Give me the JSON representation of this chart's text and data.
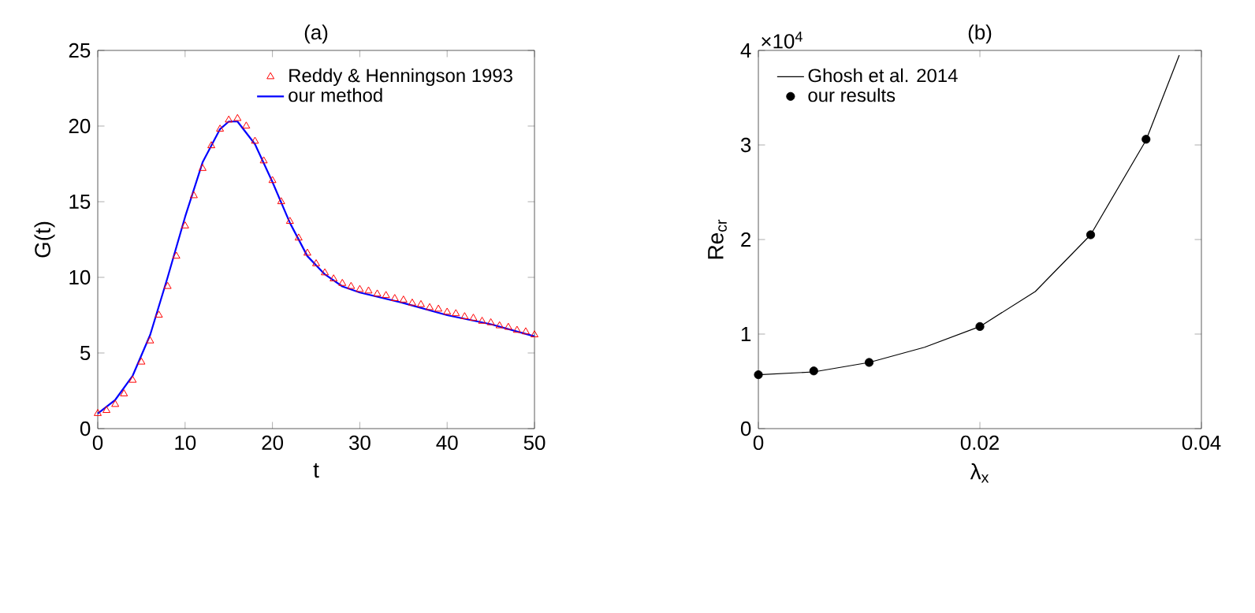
{
  "chart_data": [
    {
      "type": "line",
      "title": "(a)",
      "xlabel": "t",
      "ylabel": "G(t)",
      "xlim": [
        0,
        50
      ],
      "ylim": [
        0,
        25
      ],
      "xticks": [
        0,
        10,
        20,
        30,
        40,
        50
      ],
      "yticks": [
        0,
        5,
        10,
        15,
        20,
        25
      ],
      "legend": "top right",
      "series": [
        {
          "name": "Reddy & Henningson 1993",
          "type": "scatter",
          "marker": "triangle",
          "color": "#ff0000",
          "x": [
            0,
            1,
            2,
            3,
            4,
            5,
            6,
            7,
            8,
            9,
            10,
            11,
            12,
            13,
            14,
            15,
            16,
            17,
            18,
            19,
            20,
            21,
            22,
            23,
            24,
            25,
            26,
            27,
            28,
            29,
            30,
            31,
            32,
            33,
            34,
            35,
            36,
            37,
            38,
            39,
            40,
            41,
            42,
            43,
            44,
            45,
            46,
            47,
            48,
            49,
            50
          ],
          "values": [
            1.0,
            1.2,
            1.6,
            2.3,
            3.2,
            4.4,
            5.8,
            7.5,
            9.4,
            11.4,
            13.4,
            15.4,
            17.2,
            18.7,
            19.8,
            20.4,
            20.5,
            20.0,
            19.0,
            17.7,
            16.4,
            15.0,
            13.7,
            12.6,
            11.6,
            10.9,
            10.3,
            9.9,
            9.6,
            9.4,
            9.2,
            9.1,
            8.9,
            8.8,
            8.6,
            8.5,
            8.3,
            8.2,
            8.0,
            7.9,
            7.7,
            7.6,
            7.4,
            7.3,
            7.1,
            7.0,
            6.8,
            6.7,
            6.5,
            6.4,
            6.2
          ]
        },
        {
          "name": "our method",
          "marker": "none",
          "color": "#0000ff",
          "x": [
            0,
            2,
            4,
            6,
            8,
            10,
            12,
            14,
            15,
            16,
            18,
            20,
            22,
            24,
            26,
            28,
            30,
            35,
            40,
            45,
            50
          ],
          "values": [
            1.0,
            1.9,
            3.5,
            6.2,
            10.0,
            14.0,
            17.6,
            19.8,
            20.3,
            20.3,
            18.8,
            16.3,
            13.6,
            11.4,
            10.2,
            9.4,
            9.0,
            8.3,
            7.5,
            6.9,
            6.1
          ]
        }
      ]
    },
    {
      "type": "line",
      "title": "(b)",
      "xlabel": "λ$_{x}$",
      "ylabel": "Re$_{cr}$",
      "xlim": [
        0,
        0.04
      ],
      "ylim": [
        0,
        4
      ],
      "xticks": [
        0,
        0.02,
        0.04
      ],
      "yticks": [
        0,
        1,
        2,
        3,
        4
      ],
      "annotations": [
        "×10$^{4}$"
      ],
      "legend": "top left",
      "series": [
        {
          "name": "Ghosh et al. 2014",
          "marker": "none",
          "color": "#000000",
          "x": [
            0,
            0.005,
            0.01,
            0.015,
            0.02,
            0.025,
            0.03,
            0.035,
            0.038
          ],
          "values": [
            0.57,
            0.6,
            0.7,
            0.86,
            1.08,
            1.45,
            2.05,
            3.05,
            3.95
          ]
        },
        {
          "name": "our results",
          "type": "scatter",
          "marker": "circle",
          "color": "#000000",
          "x": [
            0,
            0.005,
            0.01,
            0.02,
            0.03,
            0.035
          ],
          "values": [
            0.57,
            0.61,
            0.7,
            1.08,
            2.05,
            3.06
          ]
        }
      ]
    }
  ]
}
